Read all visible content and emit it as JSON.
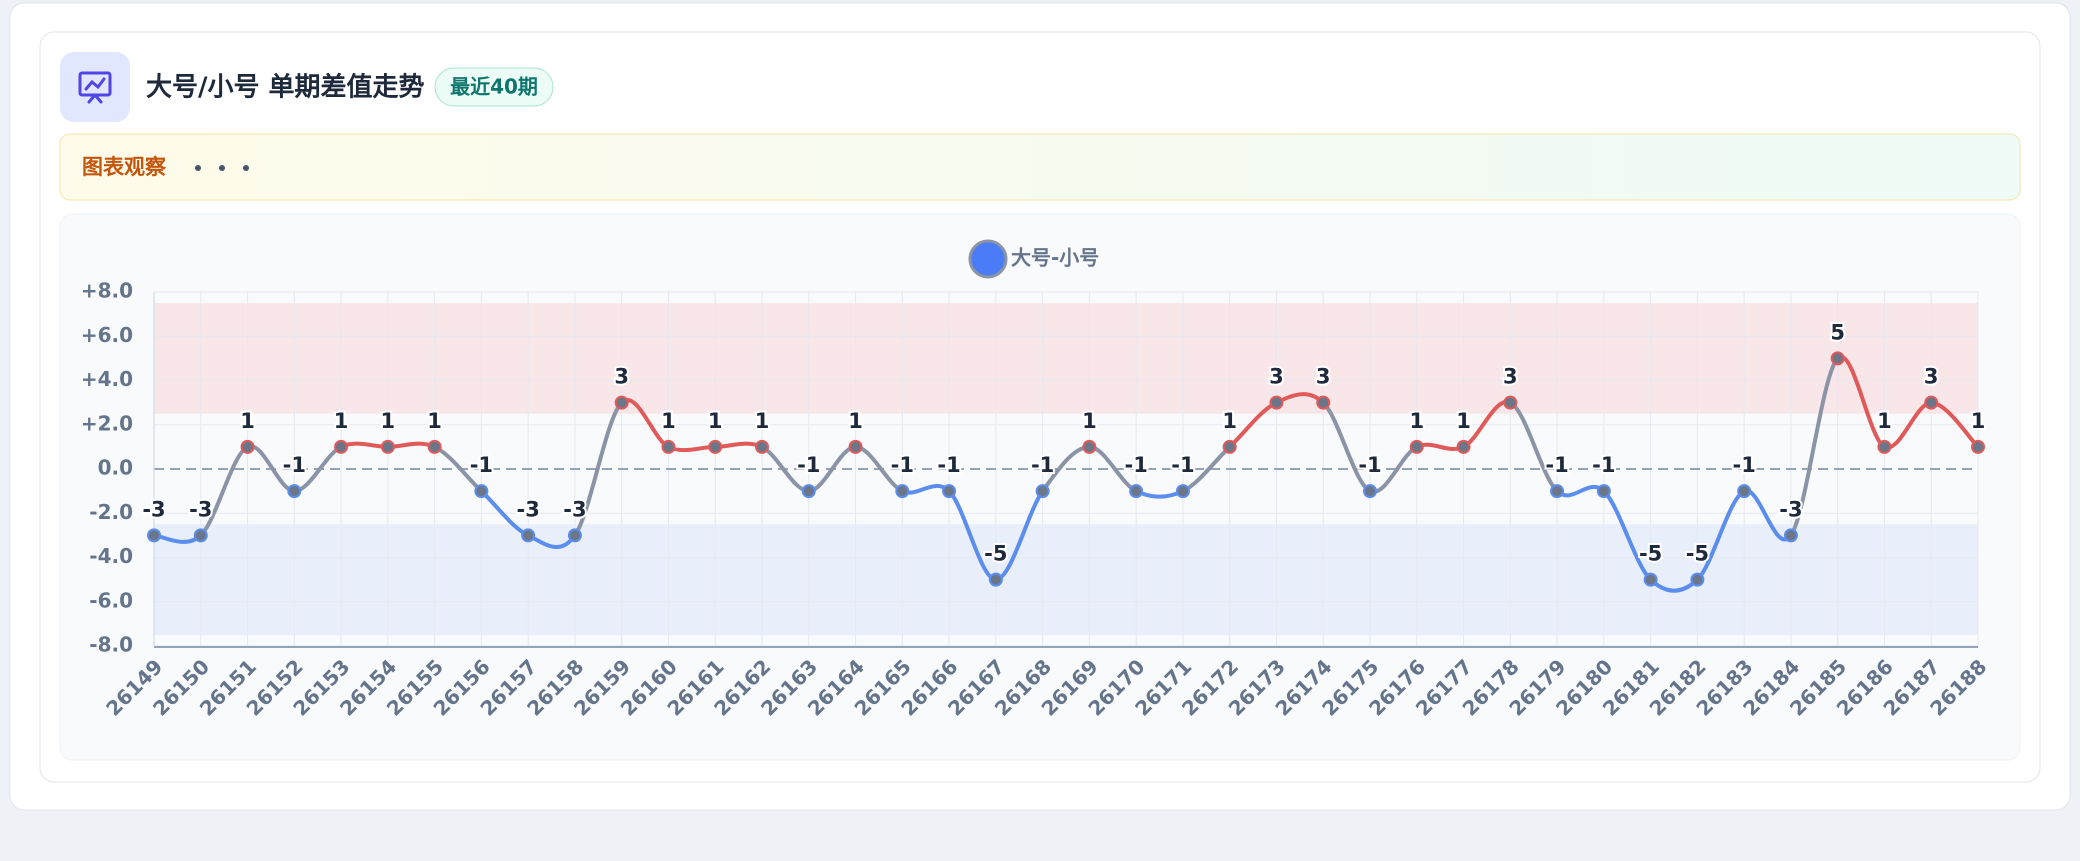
{
  "header": {
    "title": "大号/小号 单期差值走势",
    "badge": "最近40期"
  },
  "observation": {
    "label": "图表观察"
  },
  "chart_data": {
    "type": "line",
    "categories": [
      "26149",
      "26150",
      "26151",
      "26152",
      "26153",
      "26154",
      "26155",
      "26156",
      "26157",
      "26158",
      "26159",
      "26160",
      "26161",
      "26162",
      "26163",
      "26164",
      "26165",
      "26166",
      "26167",
      "26168",
      "26169",
      "26170",
      "26171",
      "26172",
      "26173",
      "26174",
      "26175",
      "26176",
      "26177",
      "26178",
      "26179",
      "26180",
      "26181",
      "26182",
      "26183",
      "26184",
      "26185",
      "26186",
      "26187",
      "26188"
    ],
    "series": [
      {
        "name": "大号-小号",
        "color": "#4a7cf7",
        "values": [
          -3,
          -3,
          1,
          -1,
          1,
          1,
          1,
          -1,
          -3,
          -3,
          3,
          1,
          1,
          1,
          -1,
          1,
          -1,
          -1,
          -5,
          -1,
          1,
          -1,
          -1,
          1,
          3,
          3,
          -1,
          1,
          1,
          3,
          -1,
          -1,
          -5,
          -5,
          -1,
          -3,
          5,
          1,
          3,
          1
        ]
      }
    ],
    "positive_color": "#e05a5a",
    "negative_color": "#5b8def",
    "neutral_color": "#8a94a6",
    "bands": [
      {
        "from": 2.5,
        "to": 7.5,
        "color": "#f8e6e9"
      },
      {
        "from": -7.5,
        "to": -2.5,
        "color": "#e8eefa"
      }
    ],
    "ylim": [
      -8,
      8
    ],
    "yticks": [
      {
        "value": 8,
        "label": "+8.0"
      },
      {
        "value": 6,
        "label": "+6.0"
      },
      {
        "value": 4,
        "label": "+4.0"
      },
      {
        "value": 2,
        "label": "+2.0"
      },
      {
        "value": 0,
        "label": "0.0"
      },
      {
        "value": -2,
        "label": "-2.0"
      },
      {
        "value": -4,
        "label": "-4.0"
      },
      {
        "value": -6,
        "label": "-6.0"
      },
      {
        "value": -8,
        "label": "-8.0"
      }
    ],
    "grid": true
  }
}
